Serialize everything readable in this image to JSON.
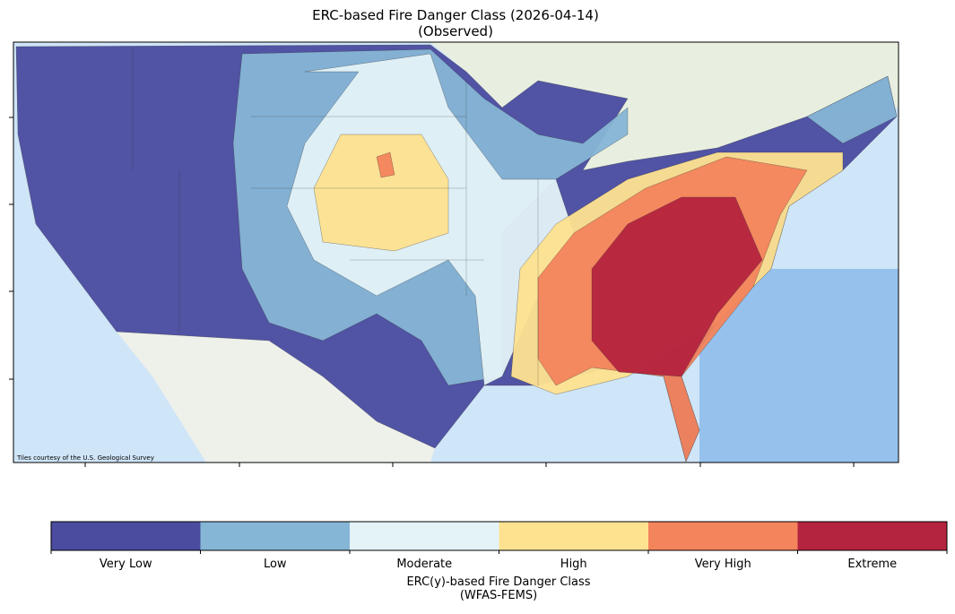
{
  "title": "ERC-based Fire Danger Class (2026-04-14)",
  "subtitle": "(Observed)",
  "map": {
    "attribution": "Tiles courtesy of the U.S. Geological Survey"
  },
  "legend": {
    "title": "ERC(y)-based Fire Danger Class",
    "subtitle": "(WFAS-FEMS)",
    "classes": [
      {
        "label": "Very Low",
        "color": "#4b4ca0"
      },
      {
        "label": "Low",
        "color": "#86b6d6"
      },
      {
        "label": "Moderate",
        "color": "#e3f3f8"
      },
      {
        "label": "High",
        "color": "#fee290"
      },
      {
        "label": "Very High",
        "color": "#f4845c"
      },
      {
        "label": "Extreme",
        "color": "#b5243f"
      }
    ]
  }
}
